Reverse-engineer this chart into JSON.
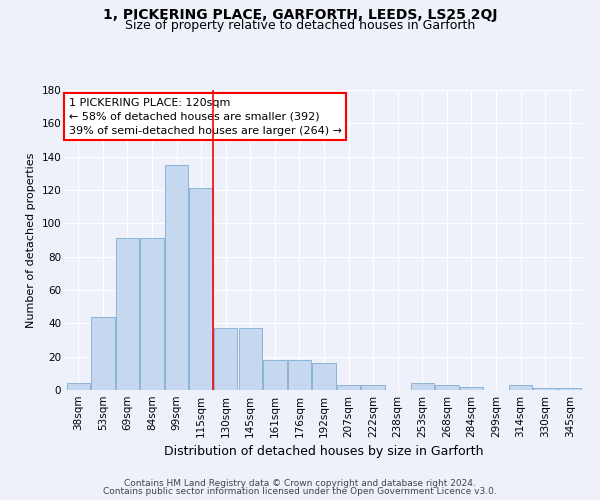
{
  "title": "1, PICKERING PLACE, GARFORTH, LEEDS, LS25 2QJ",
  "subtitle": "Size of property relative to detached houses in Garforth",
  "xlabel": "Distribution of detached houses by size in Garforth",
  "ylabel": "Number of detached properties",
  "categories": [
    "38sqm",
    "53sqm",
    "69sqm",
    "84sqm",
    "99sqm",
    "115sqm",
    "130sqm",
    "145sqm",
    "161sqm",
    "176sqm",
    "192sqm",
    "207sqm",
    "222sqm",
    "238sqm",
    "253sqm",
    "268sqm",
    "284sqm",
    "299sqm",
    "314sqm",
    "330sqm",
    "345sqm"
  ],
  "values": [
    4,
    44,
    91,
    91,
    135,
    121,
    37,
    37,
    18,
    18,
    16,
    3,
    3,
    0,
    4,
    3,
    2,
    0,
    3,
    1,
    1
  ],
  "bar_color": "#c5d8f0",
  "bar_edge_color": "#8ab4d8",
  "property_line_x": 5.5,
  "annotation_line1": "1 PICKERING PLACE: 120sqm",
  "annotation_line2": "← 58% of detached houses are smaller (392)",
  "annotation_line3": "39% of semi-detached houses are larger (264) →",
  "ylim": [
    0,
    180
  ],
  "yticks": [
    0,
    20,
    40,
    60,
    80,
    100,
    120,
    140,
    160,
    180
  ],
  "background_color": "#eef1fa",
  "plot_background": "#eef1fa",
  "grid_color": "#ffffff",
  "footer_line1": "Contains HM Land Registry data © Crown copyright and database right 2024.",
  "footer_line2": "Contains public sector information licensed under the Open Government Licence v3.0.",
  "title_fontsize": 10,
  "subtitle_fontsize": 9,
  "xlabel_fontsize": 9,
  "ylabel_fontsize": 8,
  "tick_fontsize": 7.5,
  "annotation_fontsize": 8,
  "footer_fontsize": 6.5
}
